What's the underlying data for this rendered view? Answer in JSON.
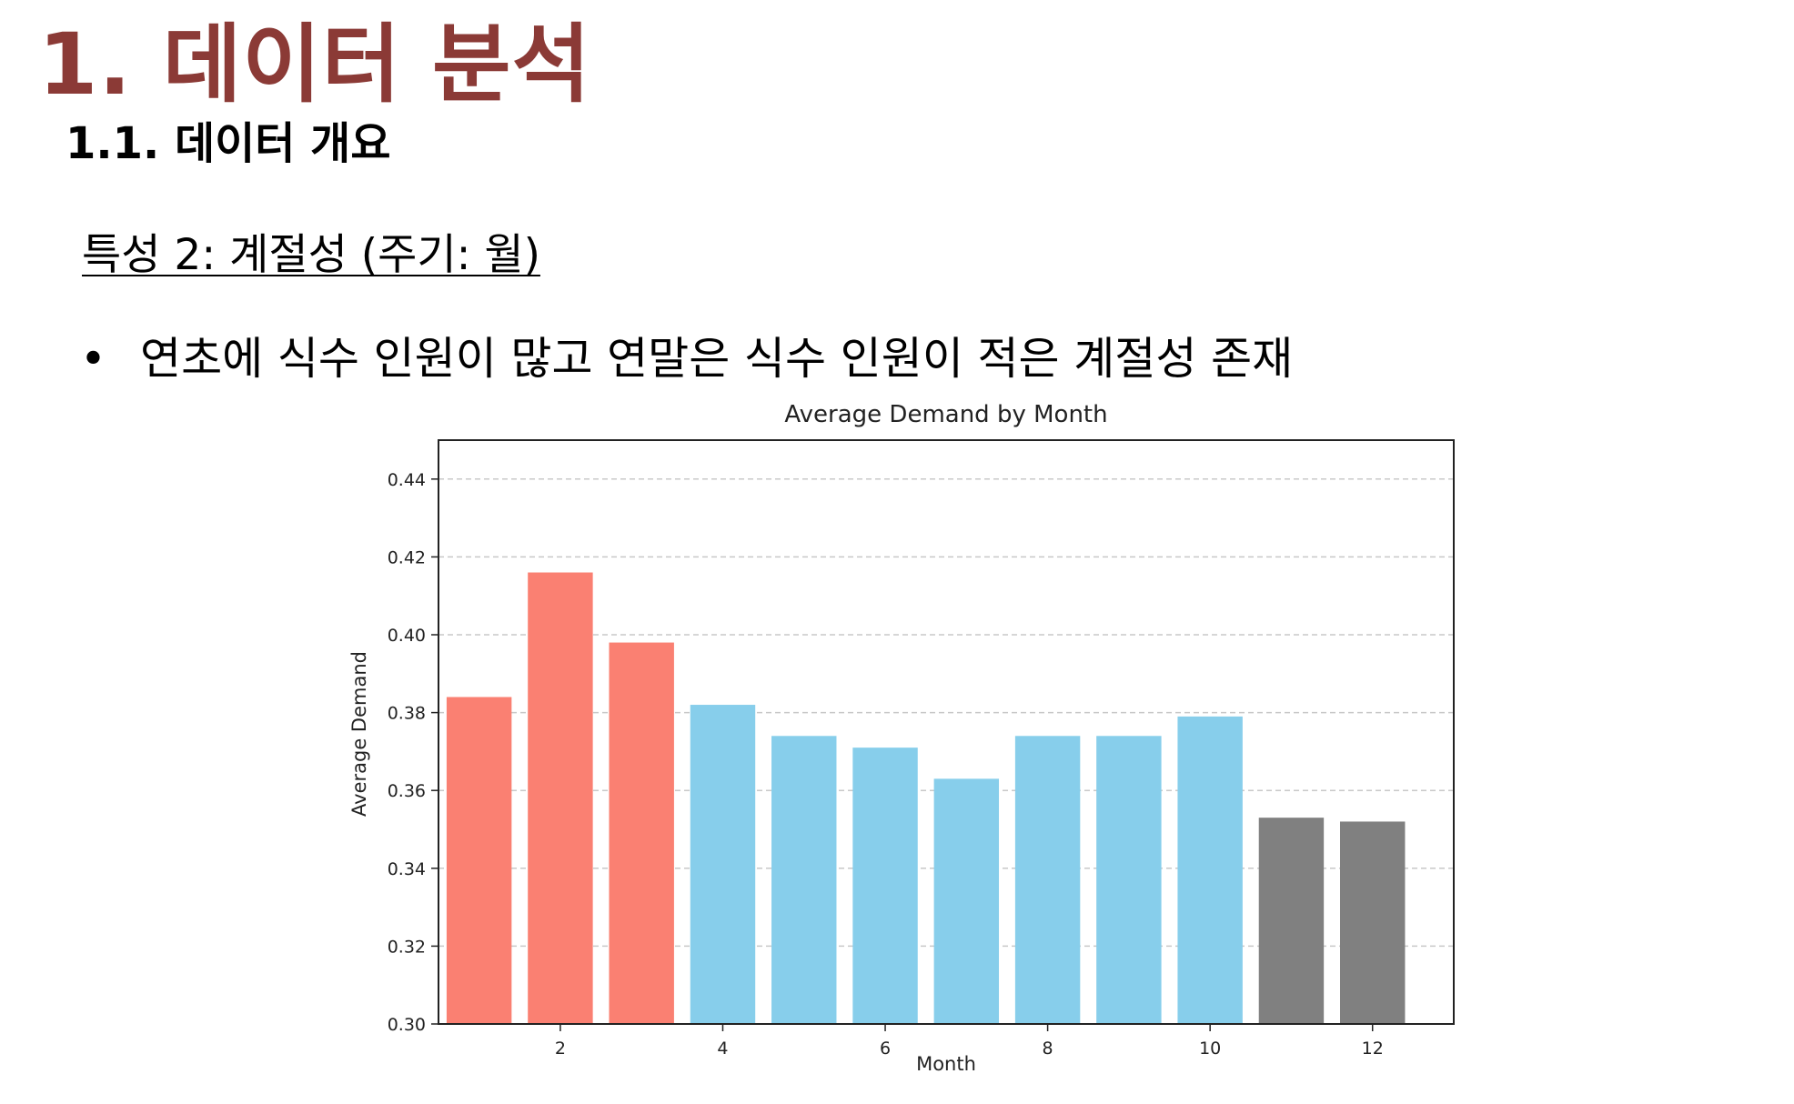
{
  "slide": {
    "title": "1. 데이터 분석",
    "subtitle": "1.1. 데이터 개요",
    "feature_heading": "특성 2: 계절성 (주기: 월)",
    "bullet_symbol": "•",
    "bullet_text": "연초에 식수 인원이 많고 연말은 식수 인원이 적은 계절성 존재"
  },
  "colors": {
    "title": "#8b3a36",
    "early_months": "#fa8072",
    "mid_months": "#87ceeb",
    "late_months": "#808080",
    "grid": "#c8c8c8"
  },
  "chart_data": {
    "type": "bar",
    "title": "Average Demand by Month",
    "xlabel": "Month",
    "ylabel": "Average Demand",
    "categories": [
      1,
      2,
      3,
      4,
      5,
      6,
      7,
      8,
      9,
      10,
      11,
      12
    ],
    "values": [
      0.384,
      0.416,
      0.398,
      0.382,
      0.374,
      0.371,
      0.363,
      0.374,
      0.374,
      0.379,
      0.353,
      0.352
    ],
    "bar_color_groups": [
      "early_months",
      "early_months",
      "early_months",
      "mid_months",
      "mid_months",
      "mid_months",
      "mid_months",
      "mid_months",
      "mid_months",
      "mid_months",
      "late_months",
      "late_months"
    ],
    "xlim": [
      0.5,
      13
    ],
    "ylim": [
      0.3,
      0.45
    ],
    "x_ticks": [
      2,
      4,
      6,
      8,
      10,
      12
    ],
    "y_ticks": [
      0.3,
      0.32,
      0.34,
      0.36,
      0.38,
      0.4,
      0.42,
      0.44
    ],
    "y_tick_labels": [
      "0.30",
      "0.32",
      "0.34",
      "0.36",
      "0.38",
      "0.40",
      "0.42",
      "0.44"
    ],
    "grid": "horizontal-dashed",
    "legend": "none"
  }
}
